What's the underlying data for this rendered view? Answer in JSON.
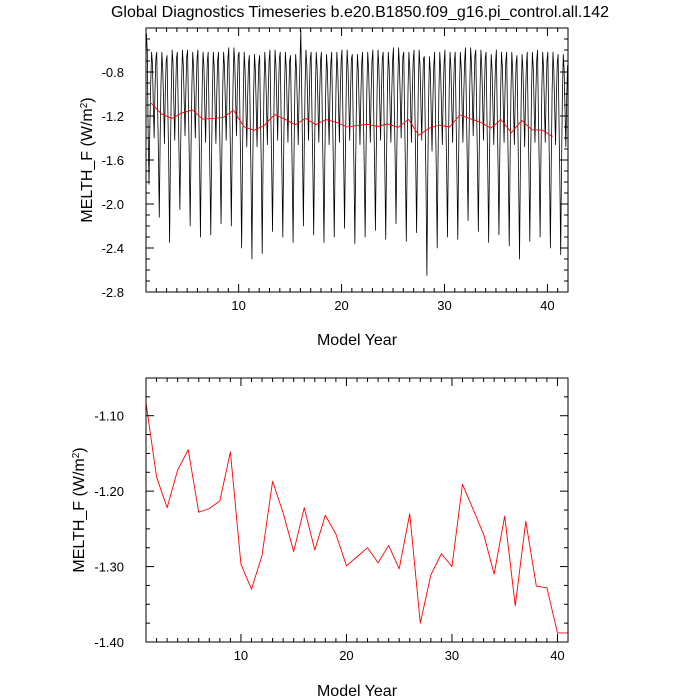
{
  "title": "Global Diagnostics Timeseries b.e20.B1850.f09_g16.pi_control.all.142",
  "colors": {
    "monthly": "#000000",
    "annual": "#ff0000",
    "axis": "#000000"
  },
  "chart_data": [
    {
      "type": "line",
      "xlabel": "Model Year",
      "ylabel": "MELTH_F (W/m",
      "ylabel_sup": "2",
      "ylabel_end": ")",
      "xlim": [
        1,
        42
      ],
      "ylim": [
        -2.8,
        -0.4
      ],
      "xticks": [
        10,
        20,
        30,
        40
      ],
      "xtick_labels": [
        "10",
        "20",
        "30",
        "40"
      ],
      "yticks": [
        -2.8,
        -2.4,
        -2.0,
        -1.6,
        -1.2,
        -0.8
      ],
      "ytick_labels": [
        "-2.8",
        "-2.4",
        "-2.0",
        "-1.6",
        "-1.2",
        "-0.8"
      ],
      "series": [
        {
          "color": "#000000",
          "x_start": 1.0417,
          "x_step": 0.08333,
          "values": [
            -0.45,
            -0.62,
            -1.35,
            -1.82,
            -1.3,
            -0.9,
            -0.62,
            -0.72,
            -1.1,
            -1.4,
            -0.95,
            -0.68,
            -0.62,
            -1.1,
            -1.55,
            -2.12,
            -1.4,
            -0.9,
            -0.62,
            -0.78,
            -1.05,
            -1.45,
            -0.98,
            -0.7,
            -0.65,
            -1.15,
            -1.62,
            -2.35,
            -1.55,
            -0.95,
            -0.6,
            -0.72,
            -1.1,
            -1.42,
            -1.0,
            -0.68,
            -0.62,
            -1.1,
            -1.55,
            -2.05,
            -1.45,
            -0.9,
            -0.6,
            -0.74,
            -1.05,
            -1.38,
            -0.96,
            -0.66,
            -0.6,
            -1.12,
            -1.6,
            -2.2,
            -1.5,
            -0.92,
            -0.62,
            -0.76,
            -1.08,
            -1.4,
            -0.98,
            -0.68,
            -0.6,
            -1.15,
            -1.65,
            -2.3,
            -1.5,
            -0.95,
            -0.62,
            -0.74,
            -1.1,
            -1.44,
            -1.0,
            -0.7,
            -0.62,
            -1.2,
            -1.7,
            -2.28,
            -1.55,
            -0.96,
            -0.62,
            -0.76,
            -1.1,
            -1.45,
            -1.0,
            -0.7,
            -0.62,
            -1.15,
            -1.62,
            -2.18,
            -1.5,
            -0.94,
            -0.62,
            -0.75,
            -1.08,
            -1.42,
            -0.98,
            -0.68,
            -0.58,
            -1.1,
            -1.55,
            -2.2,
            -1.45,
            -0.9,
            -0.58,
            -0.72,
            -1.04,
            -1.38,
            -0.95,
            -0.65,
            -0.62,
            -1.2,
            -1.72,
            -2.4,
            -1.6,
            -0.98,
            -0.62,
            -0.78,
            -1.12,
            -1.48,
            -1.02,
            -0.72,
            -0.65,
            -1.25,
            -1.78,
            -2.5,
            -1.65,
            -1.0,
            -0.64,
            -0.78,
            -1.12,
            -1.48,
            -1.02,
            -0.72,
            -0.65,
            -1.22,
            -1.7,
            -2.45,
            -1.62,
            -0.98,
            -0.62,
            -0.78,
            -1.1,
            -1.46,
            -1.0,
            -0.7,
            -0.6,
            -1.18,
            -1.65,
            -2.25,
            -1.55,
            -0.95,
            -0.6,
            -0.75,
            -1.08,
            -1.42,
            -0.98,
            -0.68,
            -0.62,
            -1.2,
            -1.7,
            -2.3,
            -1.55,
            -0.96,
            -0.62,
            -0.76,
            -1.1,
            -1.44,
            -1.0,
            -0.7,
            -0.65,
            -1.22,
            -1.72,
            -2.35,
            -1.6,
            -0.98,
            -0.64,
            -0.78,
            -1.12,
            -1.46,
            -1.02,
            -0.72,
            -0.42,
            -0.95,
            -1.52,
            -2.2,
            -1.5,
            -0.92,
            -0.6,
            -0.74,
            -1.08,
            -1.42,
            -0.98,
            -0.68,
            -0.62,
            -1.18,
            -1.65,
            -2.28,
            -1.55,
            -0.96,
            -0.62,
            -0.76,
            -1.1,
            -1.44,
            -1.0,
            -0.7,
            -0.62,
            -1.2,
            -1.72,
            -2.35,
            -1.6,
            -0.98,
            -0.64,
            -0.78,
            -1.12,
            -1.46,
            -1.02,
            -0.72,
            -0.62,
            -1.18,
            -1.68,
            -2.3,
            -1.58,
            -0.96,
            -0.62,
            -0.76,
            -1.1,
            -1.44,
            -1.0,
            -0.7,
            -0.6,
            -1.15,
            -1.62,
            -2.22,
            -1.52,
            -0.94,
            -0.6,
            -0.75,
            -1.08,
            -1.42,
            -0.98,
            -0.68,
            -0.64,
            -1.22,
            -1.7,
            -2.36,
            -1.6,
            -0.98,
            -0.64,
            -0.78,
            -1.12,
            -1.46,
            -1.02,
            -0.72,
            -0.62,
            -1.2,
            -1.68,
            -2.3,
            -1.56,
            -0.96,
            -0.62,
            -0.76,
            -1.1,
            -1.44,
            -1.0,
            -0.7,
            -0.6,
            -1.16,
            -1.64,
            -2.24,
            -1.52,
            -0.94,
            -0.6,
            -0.75,
            -1.08,
            -1.42,
            -0.98,
            -0.68,
            -0.62,
            -1.2,
            -1.7,
            -2.32,
            -1.58,
            -0.96,
            -0.62,
            -0.76,
            -1.1,
            -1.44,
            -1.0,
            -0.7,
            -0.58,
            -1.12,
            -1.6,
            -2.18,
            -1.5,
            -0.92,
            -0.58,
            -0.74,
            -1.06,
            -1.4,
            -0.96,
            -0.66,
            -0.62,
            -1.2,
            -1.7,
            -2.34,
            -1.58,
            -0.96,
            -0.62,
            -0.76,
            -1.1,
            -1.44,
            -1.0,
            -0.7,
            -0.6,
            -1.16,
            -1.64,
            -2.26,
            -1.54,
            -0.94,
            -0.6,
            -0.75,
            -1.08,
            -1.42,
            -0.98,
            -0.68,
            -0.66,
            -1.28,
            -1.85,
            -2.65,
            -1.75,
            -1.05,
            -0.66,
            -0.8,
            -1.16,
            -1.52,
            -1.05,
            -0.75,
            -0.62,
            -1.2,
            -1.72,
            -2.4,
            -1.6,
            -0.98,
            -0.62,
            -0.78,
            -1.12,
            -1.46,
            -1.02,
            -0.72,
            -0.6,
            -1.18,
            -1.66,
            -2.3,
            -1.56,
            -0.96,
            -0.62,
            -0.76,
            -1.1,
            -1.44,
            -1.0,
            -0.7,
            -0.62,
            -1.2,
            -1.7,
            -2.32,
            -1.58,
            -0.96,
            -0.62,
            -0.76,
            -1.1,
            -1.44,
            -1.0,
            -0.7,
            -0.58,
            -1.1,
            -1.58,
            -2.15,
            -1.48,
            -0.92,
            -0.58,
            -0.72,
            -1.04,
            -1.38,
            -0.95,
            -0.65,
            -0.6,
            -1.16,
            -1.64,
            -2.25,
            -1.54,
            -0.94,
            -0.6,
            -0.75,
            -1.08,
            -1.42,
            -0.98,
            -0.68,
            -0.62,
            -1.2,
            -1.7,
            -2.35,
            -1.6,
            -0.98,
            -0.64,
            -0.78,
            -1.12,
            -1.46,
            -1.02,
            -0.72,
            -0.6,
            -1.18,
            -1.66,
            -2.28,
            -1.56,
            -0.96,
            -0.62,
            -0.76,
            -1.1,
            -1.44,
            -1.0,
            -0.7,
            -0.62,
            -1.22,
            -1.72,
            -2.38,
            -1.6,
            -0.98,
            -0.62,
            -0.78,
            -1.12,
            -1.46,
            -1.02,
            -0.72,
            -0.65,
            -1.26,
            -1.8,
            -2.5,
            -1.66,
            -1.0,
            -0.64,
            -0.78,
            -1.14,
            -1.48,
            -1.04,
            -0.74,
            -0.62,
            -1.2,
            -1.7,
            -2.34,
            -1.58,
            -0.96,
            -0.62,
            -0.76,
            -1.1,
            -1.44,
            -1.0,
            -0.7,
            -0.6,
            -1.18,
            -1.66,
            -2.3,
            -1.56,
            -0.96,
            -0.62,
            -0.76,
            -1.1,
            -1.44,
            -1.0,
            -0.7,
            -0.62,
            -1.22,
            -1.72,
            -2.4,
            -1.62,
            -0.98,
            -0.62,
            -0.78,
            -1.12,
            -1.46,
            -1.02,
            -0.72,
            -0.64,
            -1.24,
            -1.76,
            -2.46,
            -1.64,
            -1.0,
            -0.64,
            -0.78,
            -1.14,
            -1.48,
            -1.04,
            -0.74
          ]
        },
        {
          "color": "#ff0000",
          "x": [
            1.5,
            2.5,
            3.5,
            4.5,
            5.5,
            6.5,
            7.5,
            8.5,
            9.5,
            10.5,
            11.5,
            12.5,
            13.5,
            14.5,
            15.5,
            16.5,
            17.5,
            18.5,
            19.5,
            20.5,
            21.5,
            22.5,
            23.5,
            24.5,
            25.5,
            26.5,
            27.5,
            28.5,
            29.5,
            30.5,
            31.5,
            32.5,
            33.5,
            34.5,
            35.5,
            36.5,
            37.5,
            38.5,
            39.5,
            40.5
          ],
          "values": [
            -1.083,
            -1.181,
            -1.222,
            -1.172,
            -1.145,
            -1.228,
            -1.223,
            -1.213,
            -1.148,
            -1.297,
            -1.33,
            -1.285,
            -1.187,
            -1.229,
            -1.28,
            -1.222,
            -1.278,
            -1.232,
            -1.257,
            -1.299,
            -1.287,
            -1.275,
            -1.295,
            -1.272,
            -1.303,
            -1.23,
            -1.375,
            -1.311,
            -1.283,
            -1.3,
            -1.191,
            -1.224,
            -1.257,
            -1.31,
            -1.233,
            -1.352,
            -1.24,
            -1.326,
            -1.328,
            -1.388
          ]
        }
      ]
    },
    {
      "type": "line",
      "xlabel": "Model Year",
      "ylabel": "MELTH_F (W/m",
      "ylabel_sup": "2",
      "ylabel_end": ")",
      "xlim": [
        1,
        41
      ],
      "ylim": [
        -1.4,
        -1.05
      ],
      "xticks": [
        10,
        20,
        30,
        40
      ],
      "xtick_labels": [
        "10",
        "20",
        "30",
        "40"
      ],
      "yticks": [
        -1.4,
        -1.3,
        -1.2,
        -1.1
      ],
      "ytick_labels": [
        "-1.40",
        "-1.30",
        "-1.20",
        "-1.10"
      ],
      "series": [
        {
          "color": "#ff0000",
          "x": [
            1,
            2,
            3,
            4,
            5,
            6,
            7,
            8,
            9,
            10,
            11,
            12,
            13,
            14,
            15,
            16,
            17,
            18,
            19,
            20,
            21,
            22,
            23,
            24,
            25,
            26,
            27,
            28,
            29,
            30,
            31,
            32,
            33,
            34,
            35,
            36,
            37,
            38,
            39,
            40,
            41
          ],
          "values": [
            -1.083,
            -1.181,
            -1.222,
            -1.172,
            -1.145,
            -1.228,
            -1.223,
            -1.213,
            -1.148,
            -1.297,
            -1.33,
            -1.285,
            -1.187,
            -1.229,
            -1.28,
            -1.222,
            -1.278,
            -1.232,
            -1.257,
            -1.299,
            -1.287,
            -1.275,
            -1.295,
            -1.272,
            -1.303,
            -1.23,
            -1.375,
            -1.311,
            -1.283,
            -1.3,
            -1.191,
            -1.224,
            -1.257,
            -1.31,
            -1.233,
            -1.352,
            -1.24,
            -1.326,
            -1.328,
            -1.388,
            -1.388
          ]
        }
      ]
    }
  ]
}
